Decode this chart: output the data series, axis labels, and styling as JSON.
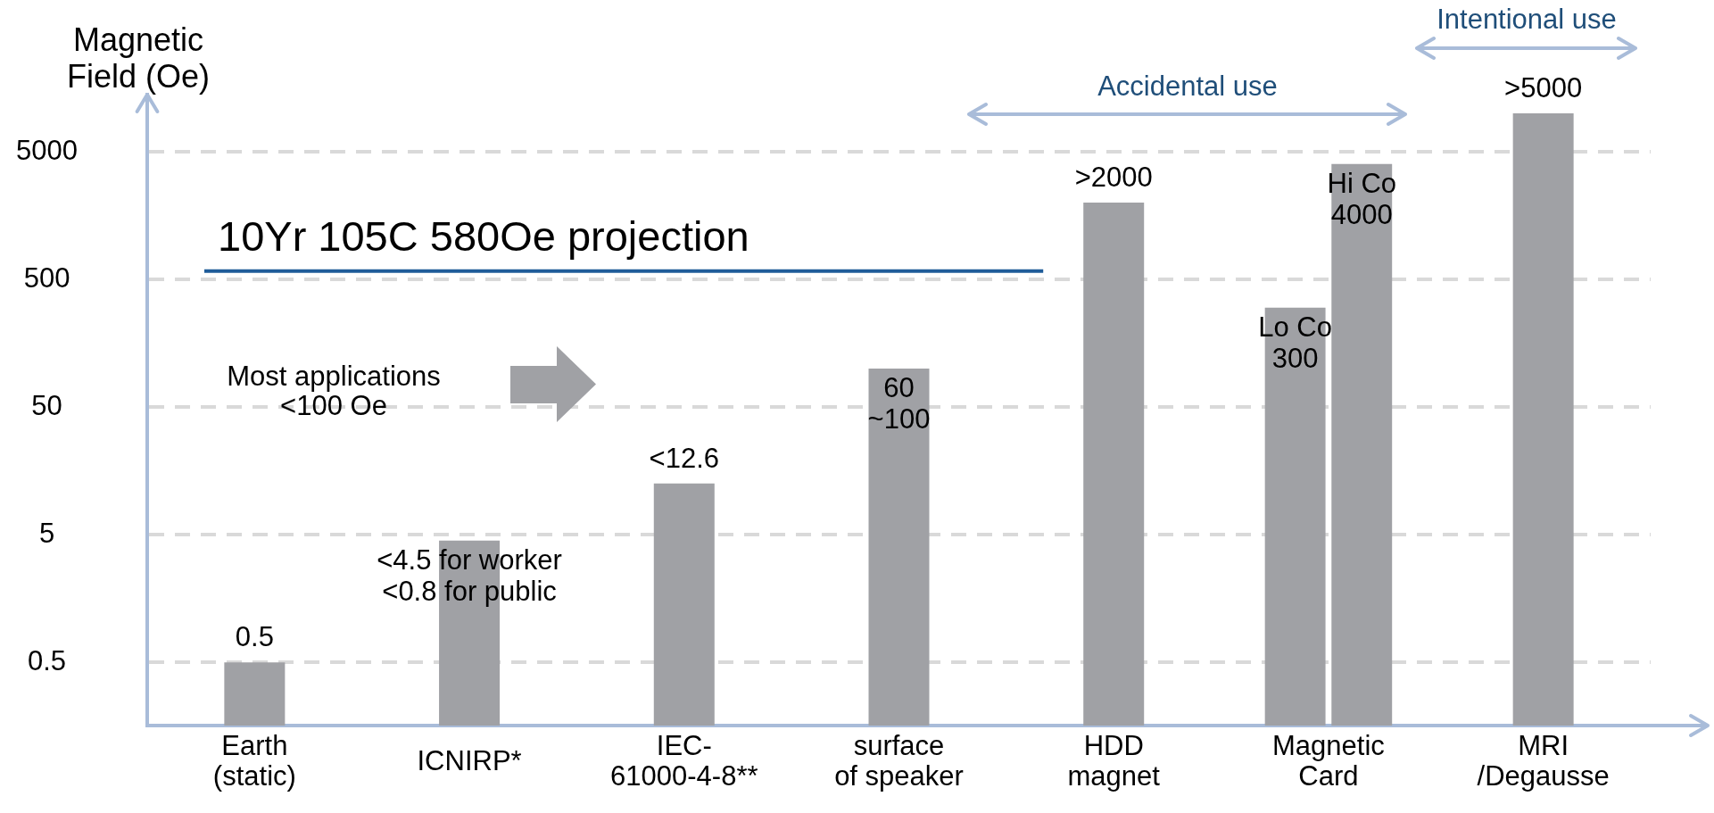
{
  "chart_data": {
    "type": "bar",
    "categories": [
      "Earth\n(static)",
      "ICNIRP*",
      "IEC-\n61000-4-8**",
      "surface\nof speaker",
      "HDD\nmagnet",
      "Magnetic\nCard",
      "MRI\n/Degausse"
    ],
    "series": [
      {
        "color": "#a0a1a5",
        "values": [
          0.5,
          4.5,
          12.6,
          100,
          2000,
          300,
          10000
        ],
        "value_labels": [
          "0.5",
          "<4.5 for worker\n<0.8 for public",
          "<12.6",
          "60\n~100",
          ">2000",
          "Lo Co\n300",
          ">5000"
        ]
      },
      {
        "color": "#a0a1a5",
        "values": [
          null,
          null,
          null,
          null,
          null,
          4000,
          null
        ],
        "value_labels": [
          null,
          null,
          null,
          null,
          null,
          "Hi Co\n4000",
          null
        ]
      }
    ],
    "ylabel": "Magnetic\nField (Oe)",
    "log": true,
    "ylim": [
      0.16,
      14000
    ],
    "yticks": [
      0.5,
      5,
      50,
      500,
      5000
    ],
    "grid": "y",
    "ref_lines": [
      {
        "axis": "y",
        "value": 580,
        "label": "10Yr 105C 580Oe projection",
        "color": "#1f5c99"
      }
    ],
    "annotations": [
      "Most applications\n<100 Oe",
      "Accidental use",
      "Intentional use"
    ]
  }
}
